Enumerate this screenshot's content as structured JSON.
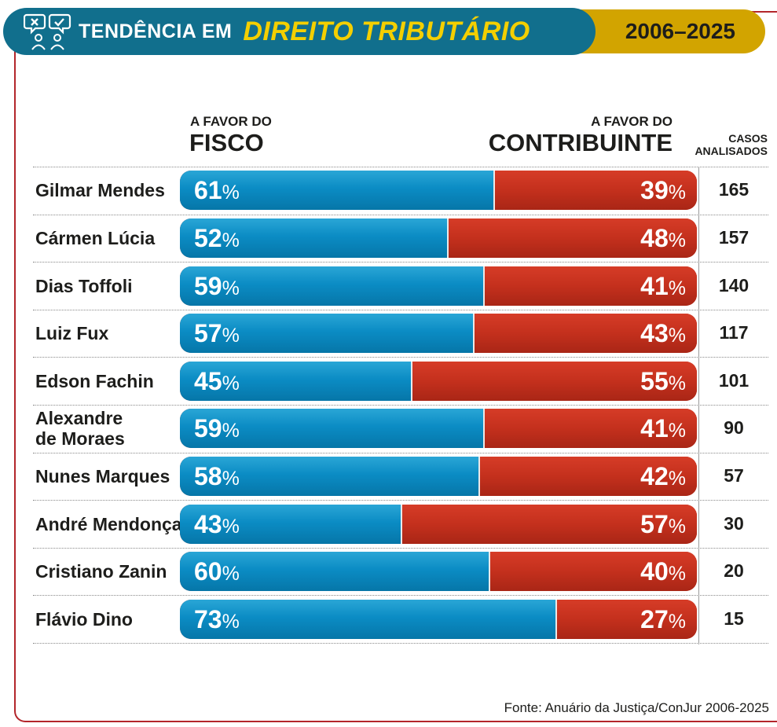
{
  "header": {
    "title_prefix": "TENDÊNCIA EM",
    "title_main": "DIREITO TRIBUTÁRIO",
    "period": "2006–2025",
    "icon": "debate-people-icon"
  },
  "columns": {
    "left_small": "A FAVOR DO",
    "left_big": "FISCO",
    "right_small": "A FAVOR DO",
    "right_big": "CONTRIBUINTE",
    "cases_line1": "CASOS",
    "cases_line2": "ANALISADOS"
  },
  "chart_data": {
    "type": "bar",
    "stacked": true,
    "orientation": "horizontal",
    "categories": [
      "Gilmar Mendes",
      "Cármen Lúcia",
      "Dias Toffoli",
      "Luiz Fux",
      "Edson Fachin",
      "Alexandre de Moraes",
      "Nunes Marques",
      "André Mendonça",
      "Cristiano Zanin",
      "Flávio Dino"
    ],
    "category_lines": [
      [
        "Gilmar Mendes"
      ],
      [
        "Cármen Lúcia"
      ],
      [
        "Dias Toffoli"
      ],
      [
        "Luiz Fux"
      ],
      [
        "Edson Fachin"
      ],
      [
        "Alexandre",
        "de Moraes"
      ],
      [
        "Nunes Marques"
      ],
      [
        "André Mendonça"
      ],
      [
        "Cristiano Zanin"
      ],
      [
        "Flávio Dino"
      ]
    ],
    "series": [
      {
        "name": "FISCO",
        "color": "#0b8cc4",
        "values": [
          61,
          52,
          59,
          57,
          45,
          59,
          58,
          43,
          60,
          73
        ]
      },
      {
        "name": "CONTRIBUINTE",
        "color": "#c4301d",
        "values": [
          39,
          48,
          41,
          43,
          55,
          41,
          42,
          57,
          40,
          27
        ]
      }
    ],
    "cases": [
      165,
      157,
      140,
      117,
      101,
      90,
      57,
      30,
      20,
      15
    ],
    "unit": "%",
    "xlim": [
      0,
      100
    ]
  },
  "source": "Fonte: Anuário da Justiça/ConJur 2006-2025"
}
